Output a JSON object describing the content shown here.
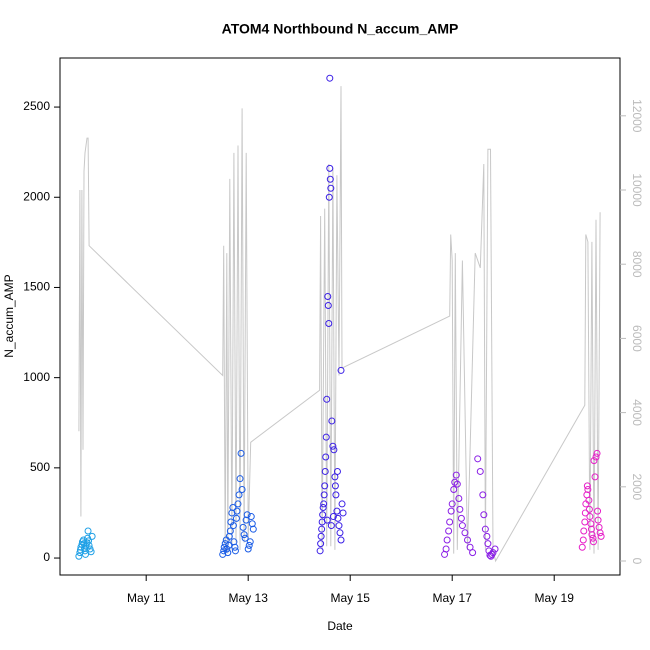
{
  "chart_data": {
    "type": "scatter",
    "title": "ATOM4 Northbound N_accum_AMP",
    "x_label": "Date",
    "y_label": "N_accum_AMP",
    "xlim": [
      9.31,
      20.29
    ],
    "xticks": [
      {
        "value": 11,
        "label": "May 11"
      },
      {
        "value": 13,
        "label": "May 13"
      },
      {
        "value": 15,
        "label": "May 15"
      },
      {
        "value": 17,
        "label": "May 17"
      },
      {
        "value": 19,
        "label": "May 19"
      }
    ],
    "ylim": [
      -94,
      2772
    ],
    "yticks": [
      0,
      500,
      1000,
      1500,
      2000,
      2500
    ],
    "y2lim": [
      -377,
      13558
    ],
    "y2ticks": [
      0,
      2000,
      4000,
      6000,
      8000,
      10000,
      12000
    ],
    "series": [
      {
        "style": "line",
        "axis": "y2",
        "color": "#c8c8c8",
        "x": [
          9.68,
          9.7,
          9.72,
          9.74,
          9.76,
          9.78,
          9.8,
          9.84,
          9.86,
          9.88,
          12.5,
          12.52,
          12.55,
          12.58,
          12.6,
          12.64,
          12.68,
          12.72,
          12.76,
          12.8,
          12.84,
          12.88,
          12.92,
          12.96,
          13.0,
          13.05,
          14.4,
          14.42,
          14.45,
          14.5,
          14.54,
          14.58,
          14.62,
          14.66,
          14.7,
          14.74,
          14.78,
          14.82,
          14.84,
          16.95,
          16.97,
          17.0,
          17.03,
          17.06,
          17.1,
          17.2,
          17.3,
          17.45,
          17.55,
          17.62,
          17.65,
          17.7,
          17.75,
          17.8,
          17.85,
          19.6,
          19.62,
          19.66,
          19.7,
          19.74,
          19.78,
          19.82,
          19.86,
          19.9
        ],
        "values": [
          3500,
          10000,
          1200,
          10000,
          3000,
          10500,
          11000,
          11400,
          11400,
          8500,
          5000,
          8500,
          200,
          8300,
          200,
          10300,
          300,
          11000,
          500,
          11200,
          300,
          12200,
          500,
          11000,
          600,
          3200,
          4600,
          9300,
          300,
          9500,
          400,
          10700,
          400,
          10600,
          300,
          10400,
          5000,
          12800,
          5200,
          6600,
          8800,
          8100,
          200,
          8300,
          300,
          8100,
          300,
          8300,
          7900,
          10700,
          300,
          11100,
          11100,
          300,
          0,
          4200,
          8800,
          8600,
          300,
          8600,
          200,
          9200,
          300,
          9400
        ]
      },
      {
        "style": "points",
        "color": "#1fa0e6",
        "x": [
          9.68,
          9.7,
          9.71,
          9.72,
          9.74,
          9.75,
          9.77,
          9.78,
          9.79,
          9.8,
          9.81,
          9.82,
          9.84,
          9.85,
          9.86,
          9.87,
          9.88,
          9.9,
          9.92,
          9.94
        ],
        "values": [
          10,
          30,
          45,
          60,
          75,
          90,
          100,
          80,
          55,
          40,
          20,
          65,
          85,
          110,
          150,
          95,
          70,
          50,
          35,
          120
        ]
      },
      {
        "style": "points",
        "color": "#1a5ce6",
        "x": [
          12.5,
          12.52,
          12.53,
          12.55,
          12.57,
          12.58,
          12.6,
          12.62,
          12.63,
          12.65,
          12.66,
          12.68,
          12.7,
          12.71,
          12.72,
          12.74,
          12.75,
          12.77,
          12.78,
          12.8,
          12.82,
          12.84,
          12.86,
          12.88,
          12.9,
          12.92,
          12.94,
          12.96,
          12.98,
          13.0,
          13.02,
          13.04,
          13.06,
          13.08,
          13.1
        ],
        "values": [
          20,
          40,
          60,
          80,
          100,
          50,
          30,
          70,
          120,
          150,
          200,
          250,
          280,
          180,
          90,
          60,
          40,
          220,
          260,
          300,
          350,
          440,
          580,
          380,
          170,
          130,
          110,
          210,
          240,
          50,
          70,
          90,
          230,
          190,
          160
        ]
      },
      {
        "style": "points",
        "color": "#3a1fe6",
        "x": [
          14.41,
          14.42,
          14.43,
          14.44,
          14.45,
          14.46,
          14.47,
          14.48,
          14.49,
          14.5,
          14.51,
          14.52,
          14.53,
          14.54,
          14.56,
          14.57,
          14.58,
          14.59,
          14.6,
          14.61,
          14.62,
          14.6,
          14.64,
          14.66,
          14.68,
          14.82,
          14.7,
          14.72,
          14.74,
          14.76,
          14.78,
          14.8,
          14.82,
          14.84,
          14.86,
          14.55,
          14.63,
          14.67,
          14.71,
          14.75
        ],
        "values": [
          40,
          80,
          120,
          160,
          200,
          240,
          280,
          300,
          350,
          400,
          480,
          560,
          670,
          880,
          1450,
          1400,
          1300,
          2000,
          2160,
          2100,
          2050,
          2660,
          760,
          620,
          600,
          1040,
          450,
          350,
          260,
          220,
          180,
          140,
          100,
          300,
          250,
          210,
          180,
          230,
          400,
          480
        ]
      },
      {
        "style": "points",
        "color": "#8a1fe6",
        "x": [
          16.85,
          16.88,
          16.9,
          16.93,
          16.95,
          16.98,
          17.0,
          17.03,
          17.05,
          17.08,
          17.1,
          17.13,
          17.15,
          17.18,
          17.2,
          17.25,
          17.3,
          17.35,
          17.4,
          17.5,
          17.55,
          17.6,
          17.62,
          17.65,
          17.68,
          17.7,
          17.72,
          17.74,
          17.76,
          17.78,
          17.8,
          17.84
        ],
        "values": [
          20,
          50,
          100,
          150,
          200,
          260,
          300,
          380,
          420,
          460,
          410,
          330,
          270,
          220,
          180,
          140,
          100,
          60,
          30,
          550,
          480,
          350,
          240,
          160,
          120,
          80,
          40,
          15,
          10,
          20,
          30,
          50
        ]
      },
      {
        "style": "points",
        "color": "#e61fc8",
        "x": [
          19.55,
          19.57,
          19.58,
          19.6,
          19.61,
          19.62,
          19.64,
          19.65,
          19.66,
          19.68,
          19.69,
          19.7,
          19.72,
          19.73,
          19.74,
          19.76,
          19.77,
          19.78,
          19.8,
          19.82,
          19.84,
          19.85,
          19.86,
          19.88,
          19.9,
          19.92
        ],
        "values": [
          60,
          100,
          150,
          200,
          250,
          300,
          350,
          400,
          380,
          320,
          270,
          230,
          190,
          160,
          130,
          110,
          90,
          540,
          450,
          560,
          580,
          260,
          210,
          170,
          140,
          120
        ]
      }
    ]
  }
}
